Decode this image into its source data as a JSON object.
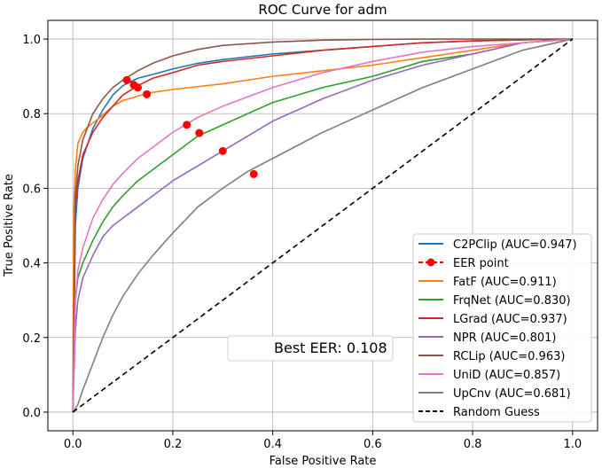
{
  "chart_data": {
    "type": "line",
    "title": "ROC Curve for adm",
    "xlabel": "False Positive Rate",
    "ylabel": "True Positive Rate",
    "xlim": [
      -0.05,
      1.05
    ],
    "ylim": [
      -0.05,
      1.05
    ],
    "xticks": [
      "0.0",
      "0.2",
      "0.4",
      "0.6",
      "0.8",
      "1.0"
    ],
    "yticks": [
      "0.0",
      "0.2",
      "0.4",
      "0.6",
      "0.8",
      "1.0"
    ],
    "grid": true,
    "legend_position": "lower-right",
    "annotation": "Best EER: 0.108",
    "series": [
      {
        "name": "C2PClip (AUC=0.947)",
        "color": "#1f77b4",
        "x": [
          0,
          0.005,
          0.01,
          0.02,
          0.04,
          0.06,
          0.08,
          0.1,
          0.13,
          0.16,
          0.2,
          0.25,
          0.3,
          0.4,
          0.5,
          0.6,
          0.7,
          0.8,
          0.9,
          1.0
        ],
        "y": [
          0,
          0.5,
          0.6,
          0.68,
          0.76,
          0.81,
          0.85,
          0.875,
          0.895,
          0.905,
          0.92,
          0.935,
          0.945,
          0.96,
          0.97,
          0.98,
          0.99,
          0.995,
          0.998,
          1.0
        ]
      },
      {
        "name": "FatF (AUC=0.911)",
        "color": "#ff7f0e",
        "x": [
          0,
          0.002,
          0.005,
          0.01,
          0.02,
          0.03,
          0.05,
          0.08,
          0.1,
          0.15,
          0.2,
          0.3,
          0.4,
          0.5,
          0.6,
          0.7,
          0.8,
          0.9,
          1.0
        ],
        "y": [
          0,
          0.55,
          0.65,
          0.72,
          0.75,
          0.765,
          0.785,
          0.82,
          0.835,
          0.855,
          0.865,
          0.88,
          0.9,
          0.915,
          0.93,
          0.95,
          0.97,
          0.99,
          1.0
        ]
      },
      {
        "name": "FrqNet (AUC=0.830)",
        "color": "#2ca02c",
        "x": [
          0,
          0.005,
          0.01,
          0.02,
          0.04,
          0.06,
          0.08,
          0.1,
          0.13,
          0.16,
          0.2,
          0.25,
          0.3,
          0.4,
          0.5,
          0.6,
          0.7,
          0.8,
          0.9,
          1.0
        ],
        "y": [
          0,
          0.3,
          0.36,
          0.4,
          0.46,
          0.51,
          0.55,
          0.58,
          0.62,
          0.65,
          0.69,
          0.74,
          0.77,
          0.83,
          0.87,
          0.9,
          0.94,
          0.96,
          0.99,
          1.0
        ]
      },
      {
        "name": "LGrad (AUC=0.937)",
        "color": "#d62728",
        "x": [
          0,
          0.005,
          0.01,
          0.02,
          0.04,
          0.06,
          0.08,
          0.1,
          0.13,
          0.16,
          0.2,
          0.25,
          0.3,
          0.4,
          0.5,
          0.6,
          0.7,
          0.8,
          0.9,
          1.0
        ],
        "y": [
          0,
          0.55,
          0.62,
          0.69,
          0.75,
          0.79,
          0.82,
          0.85,
          0.875,
          0.895,
          0.91,
          0.93,
          0.94,
          0.955,
          0.97,
          0.98,
          0.99,
          0.995,
          0.998,
          1.0
        ]
      },
      {
        "name": "NPR (AUC=0.801)",
        "color": "#9467bd",
        "x": [
          0,
          0.005,
          0.01,
          0.02,
          0.04,
          0.06,
          0.08,
          0.1,
          0.13,
          0.16,
          0.2,
          0.25,
          0.3,
          0.4,
          0.5,
          0.6,
          0.7,
          0.8,
          0.9,
          1.0
        ],
        "y": [
          0,
          0.22,
          0.3,
          0.36,
          0.42,
          0.47,
          0.5,
          0.52,
          0.55,
          0.58,
          0.62,
          0.66,
          0.7,
          0.78,
          0.84,
          0.89,
          0.93,
          0.96,
          0.99,
          1.0
        ]
      },
      {
        "name": "RCLip (AUC=0.963)",
        "color": "#8c564b",
        "x": [
          0,
          0.005,
          0.01,
          0.02,
          0.04,
          0.06,
          0.08,
          0.1,
          0.13,
          0.16,
          0.2,
          0.25,
          0.3,
          0.4,
          0.5,
          0.6,
          0.7,
          0.8,
          0.9,
          1.0
        ],
        "y": [
          0,
          0.58,
          0.66,
          0.73,
          0.8,
          0.84,
          0.87,
          0.89,
          0.915,
          0.935,
          0.955,
          0.972,
          0.983,
          0.992,
          0.997,
          0.999,
          1.0,
          1.0,
          1.0,
          1.0
        ]
      },
      {
        "name": "UniD (AUC=0.857)",
        "color": "#e377c2",
        "x": [
          0,
          0.005,
          0.01,
          0.02,
          0.04,
          0.06,
          0.08,
          0.1,
          0.13,
          0.16,
          0.2,
          0.25,
          0.3,
          0.4,
          0.5,
          0.6,
          0.7,
          0.8,
          0.9,
          1.0
        ],
        "y": [
          0,
          0.3,
          0.38,
          0.44,
          0.52,
          0.57,
          0.61,
          0.64,
          0.68,
          0.71,
          0.75,
          0.79,
          0.82,
          0.87,
          0.91,
          0.94,
          0.965,
          0.98,
          0.99,
          1.0
        ]
      },
      {
        "name": "UpCnv (AUC=0.681)",
        "color": "#7f7f7f",
        "x": [
          0,
          0.01,
          0.02,
          0.04,
          0.06,
          0.08,
          0.1,
          0.13,
          0.16,
          0.2,
          0.25,
          0.3,
          0.35,
          0.4,
          0.5,
          0.6,
          0.7,
          0.8,
          0.9,
          1.0
        ],
        "y": [
          0,
          0.02,
          0.06,
          0.13,
          0.2,
          0.26,
          0.31,
          0.37,
          0.42,
          0.48,
          0.55,
          0.6,
          0.645,
          0.68,
          0.75,
          0.81,
          0.87,
          0.92,
          0.97,
          1.0
        ]
      }
    ],
    "eer_points": {
      "name": "EER point",
      "color": "#ff0000",
      "x": [
        0.108,
        0.122,
        0.13,
        0.148,
        0.228,
        0.253,
        0.3,
        0.362
      ],
      "y": [
        0.89,
        0.877,
        0.87,
        0.852,
        0.77,
        0.748,
        0.7,
        0.638
      ]
    },
    "random_guess": {
      "name": "Random Guess",
      "color": "#000000",
      "x": [
        0,
        1
      ],
      "y": [
        0,
        1
      ]
    }
  }
}
